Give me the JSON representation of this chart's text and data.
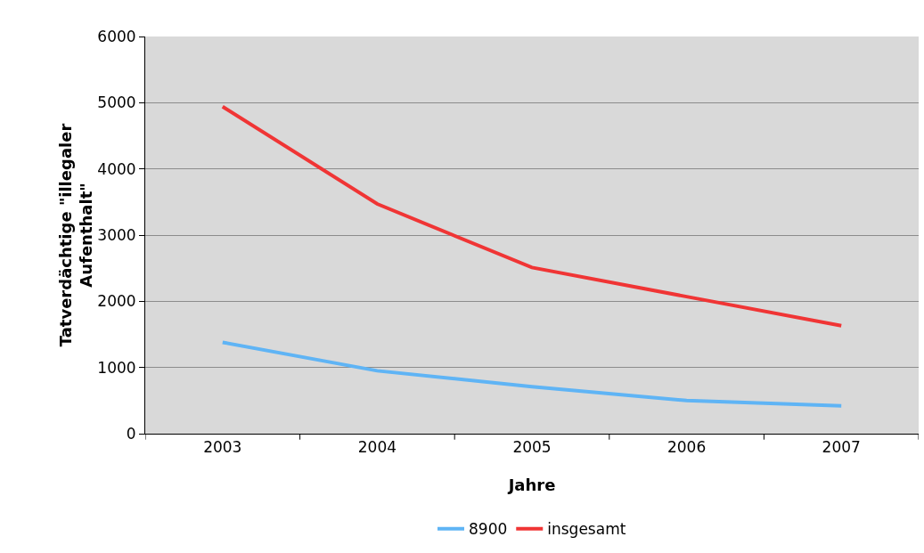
{
  "chart_data": {
    "type": "line",
    "xlabel": "Jahre",
    "ylabel": "Tatverdächtige \"illegaler Aufenthalt\"",
    "categories": [
      "2003",
      "2004",
      "2005",
      "2006",
      "2007"
    ],
    "series": [
      {
        "name": "8900",
        "color": "#5fb4f5",
        "values": [
          1380,
          950,
          710,
          500,
          420
        ]
      },
      {
        "name": "insgesamt",
        "color": "#f03535",
        "values": [
          4940,
          3470,
          2510,
          2070,
          1630
        ]
      }
    ],
    "ylim": [
      0,
      6000
    ],
    "yticks": [
      0,
      1000,
      2000,
      3000,
      4000,
      5000,
      6000
    ],
    "grid": "y",
    "legend": "bottom",
    "marker": "none",
    "line_style": "solid"
  }
}
